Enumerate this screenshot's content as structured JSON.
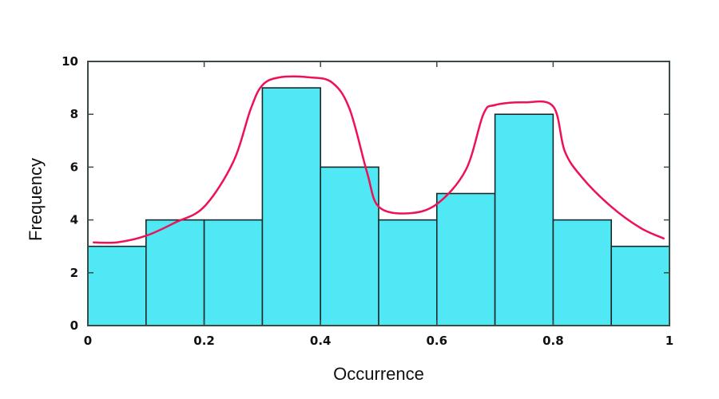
{
  "chart_data": {
    "type": "bar",
    "subtype": "histogram",
    "title": "",
    "xlabel": "Occurrence",
    "ylabel": "Frequency",
    "xlim": [
      0,
      1
    ],
    "ylim": [
      0,
      10
    ],
    "bin_edges": [
      0,
      0.1,
      0.2,
      0.3,
      0.4,
      0.5,
      0.6,
      0.7,
      0.8,
      0.9,
      1.0
    ],
    "categories": [
      "0-0.1",
      "0.1-0.2",
      "0.2-0.3",
      "0.3-0.4",
      "0.4-0.5",
      "0.5-0.6",
      "0.6-0.7",
      "0.7-0.8",
      "0.8-0.9",
      "0.9-1.0"
    ],
    "values": [
      3,
      4,
      4,
      9,
      6,
      4,
      5,
      8,
      4,
      3
    ],
    "x_ticks": [
      "0",
      "0.2",
      "0.4",
      "0.6",
      "0.8",
      "1"
    ],
    "y_ticks": [
      "0",
      "2",
      "4",
      "6",
      "8",
      "10"
    ],
    "bar_color": "#4fe8f4",
    "overlay": {
      "type": "line",
      "description": "hand-drawn bimodal density curve",
      "color": "#ee1155",
      "x": [
        0.01,
        0.05,
        0.1,
        0.15,
        0.2,
        0.25,
        0.28,
        0.3,
        0.33,
        0.38,
        0.42,
        0.45,
        0.48,
        0.5,
        0.55,
        0.6,
        0.65,
        0.68,
        0.7,
        0.75,
        0.8,
        0.82,
        0.85,
        0.9,
        0.95,
        0.99
      ],
      "y": [
        3.15,
        3.15,
        3.4,
        3.9,
        4.5,
        6.2,
        8.2,
        9.1,
        9.4,
        9.4,
        9.2,
        8.2,
        5.8,
        4.5,
        4.25,
        4.6,
        5.9,
        8.0,
        8.35,
        8.45,
        8.3,
        6.6,
        5.6,
        4.5,
        3.7,
        3.3
      ]
    },
    "grid": false,
    "legend": null
  }
}
